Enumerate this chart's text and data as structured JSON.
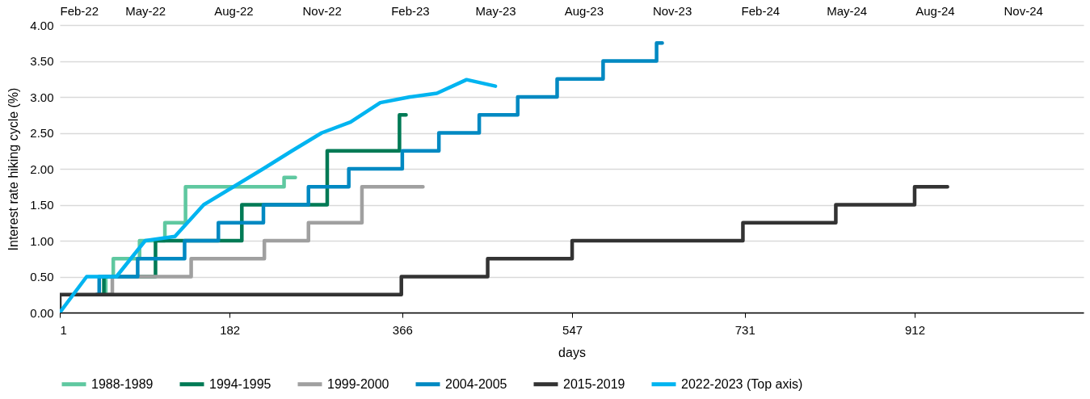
{
  "chart_data": {
    "type": "step",
    "ylabel": "Interest rate hiking cycle (%)",
    "xlabel": "days",
    "xlim": [
      1,
      1092
    ],
    "xticks": [
      1,
      182,
      366,
      547,
      731,
      912
    ],
    "x2lim": [
      "2022-02-01",
      "2025-01-03"
    ],
    "x2ticks": [
      {
        "value": "2022-02-01",
        "label": "Feb-22"
      },
      {
        "value": "2022-05-01",
        "label": "May-22"
      },
      {
        "value": "2022-08-01",
        "label": "Aug-22"
      },
      {
        "value": "2022-11-01",
        "label": "Nov-22"
      },
      {
        "value": "2023-02-01",
        "label": "Feb-23"
      },
      {
        "value": "2023-05-01",
        "label": "May-23"
      },
      {
        "value": "2023-08-01",
        "label": "Aug-23"
      },
      {
        "value": "2023-11-01",
        "label": "Nov-23"
      },
      {
        "value": "2024-02-01",
        "label": "Feb-24"
      },
      {
        "value": "2024-05-01",
        "label": "May-24"
      },
      {
        "value": "2024-08-01",
        "label": "Aug-24"
      },
      {
        "value": "2024-11-01",
        "label": "Nov-24"
      }
    ],
    "ylim": [
      0,
      4
    ],
    "yticks": [
      {
        "value": 0,
        "label": "0.00"
      },
      {
        "value": 0.5,
        "label": "0.50"
      },
      {
        "value": 1,
        "label": "1.00"
      },
      {
        "value": 1.5,
        "label": "1.50"
      },
      {
        "value": 2,
        "label": "2.00"
      },
      {
        "value": 2.5,
        "label": "2.50"
      },
      {
        "value": 3,
        "label": "3.00"
      },
      {
        "value": 3.5,
        "label": "3.50"
      },
      {
        "value": 4,
        "label": "4.00"
      }
    ],
    "grid": "y",
    "legend": "bottom",
    "line_style": "solid",
    "series": [
      {
        "name": "1988-1989",
        "color": "#5fc8a0",
        "x": [
          48,
          50,
          58,
          86,
          113,
          135,
          240,
          252
        ],
        "values": [
          0.25,
          0.5,
          0.75,
          1.0,
          1.25,
          1.75,
          1.88,
          1.88
        ]
      },
      {
        "name": "1994-1995",
        "color": "#007a55",
        "x": [
          44,
          48,
          103,
          195,
          286,
          363,
          370
        ],
        "values": [
          0.25,
          0.5,
          1.0,
          1.5,
          2.25,
          2.75,
          2.75
        ]
      },
      {
        "name": "1999-2000",
        "color": "#a0a0a0",
        "x": [
          53,
          57,
          141,
          219,
          266,
          323,
          388
        ],
        "values": [
          0.25,
          0.5,
          0.75,
          1.0,
          1.25,
          1.75,
          1.75
        ]
      },
      {
        "name": "2004-2005",
        "color": "#0089c2",
        "x": [
          40,
          43,
          84,
          134,
          170,
          218,
          266,
          309,
          366,
          405,
          448,
          489,
          531,
          580,
          637,
          643
        ],
        "values": [
          0.25,
          0.5,
          0.75,
          1.0,
          1.25,
          1.5,
          1.75,
          2.0,
          2.25,
          2.5,
          2.75,
          3.0,
          3.25,
          3.5,
          3.75,
          3.75
        ]
      },
      {
        "name": "2015-2019",
        "color": "#333333",
        "x": [
          1,
          1,
          365,
          457,
          547,
          729,
          828,
          912,
          947
        ],
        "values": [
          0,
          0.25,
          0.5,
          0.75,
          1.0,
          1.25,
          1.5,
          1.75,
          1.75
        ]
      },
      {
        "name": "2022-2023 (Top axis)",
        "color": "#00b4f0",
        "type": "line",
        "axis": "x2",
        "x": [
          "2022-02-01",
          "2022-03-01",
          "2022-04-01",
          "2022-05-01",
          "2022-06-01",
          "2022-07-01",
          "2022-09-01",
          "2022-10-01",
          "2022-11-01",
          "2022-12-01",
          "2023-01-01",
          "2023-02-01",
          "2023-03-01",
          "2023-04-01",
          "2023-05-01"
        ],
        "values": [
          0,
          0.5,
          0.5,
          1.0,
          1.06,
          1.5,
          2.0,
          2.25,
          2.5,
          2.65,
          2.92,
          3.0,
          3.05,
          3.24,
          3.15
        ]
      }
    ]
  }
}
